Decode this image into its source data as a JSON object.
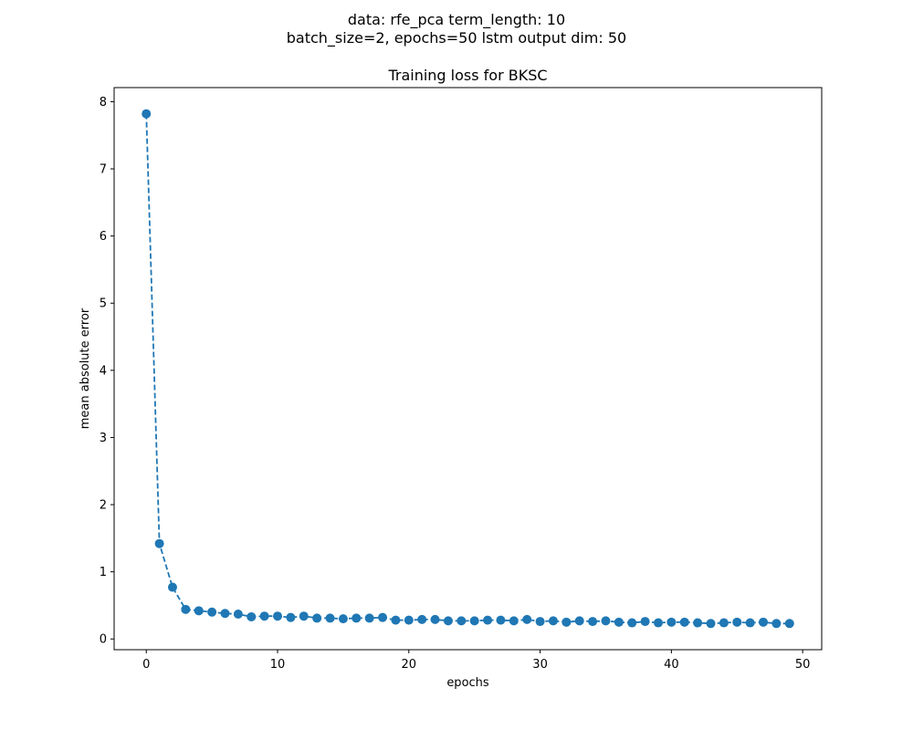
{
  "figure": {
    "suptitle_line1": "data: rfe_pca term_length: 10",
    "suptitle_line2": "batch_size=2, epochs=50 lstm output dim: 50"
  },
  "chart_data": {
    "type": "line",
    "title": "Training loss for BKSC",
    "xlabel": "epochs",
    "ylabel": "mean absolute error",
    "xlim": [
      -2.45,
      51.45
    ],
    "ylim": [
      -0.16,
      8.21
    ],
    "xticks": [
      0,
      10,
      20,
      30,
      40,
      50
    ],
    "yticks": [
      0,
      1,
      2,
      3,
      4,
      5,
      6,
      7,
      8
    ],
    "grid": false,
    "line_style": "dashed",
    "marker": "circle",
    "color": "#1f77b4",
    "x": [
      0,
      1,
      2,
      3,
      4,
      5,
      6,
      7,
      8,
      9,
      10,
      11,
      12,
      13,
      14,
      15,
      16,
      17,
      18,
      19,
      20,
      21,
      22,
      23,
      24,
      25,
      26,
      27,
      28,
      29,
      30,
      31,
      32,
      33,
      34,
      35,
      36,
      37,
      38,
      39,
      40,
      41,
      42,
      43,
      44,
      45,
      46,
      47,
      48,
      49
    ],
    "y": [
      7.82,
      1.42,
      0.77,
      0.44,
      0.42,
      0.4,
      0.38,
      0.37,
      0.33,
      0.34,
      0.34,
      0.32,
      0.34,
      0.31,
      0.31,
      0.3,
      0.31,
      0.31,
      0.32,
      0.28,
      0.28,
      0.29,
      0.29,
      0.27,
      0.27,
      0.27,
      0.28,
      0.28,
      0.27,
      0.29,
      0.26,
      0.27,
      0.25,
      0.27,
      0.26,
      0.27,
      0.25,
      0.24,
      0.26,
      0.24,
      0.25,
      0.25,
      0.24,
      0.23,
      0.24,
      0.25,
      0.24,
      0.25,
      0.23,
      0.23
    ]
  }
}
